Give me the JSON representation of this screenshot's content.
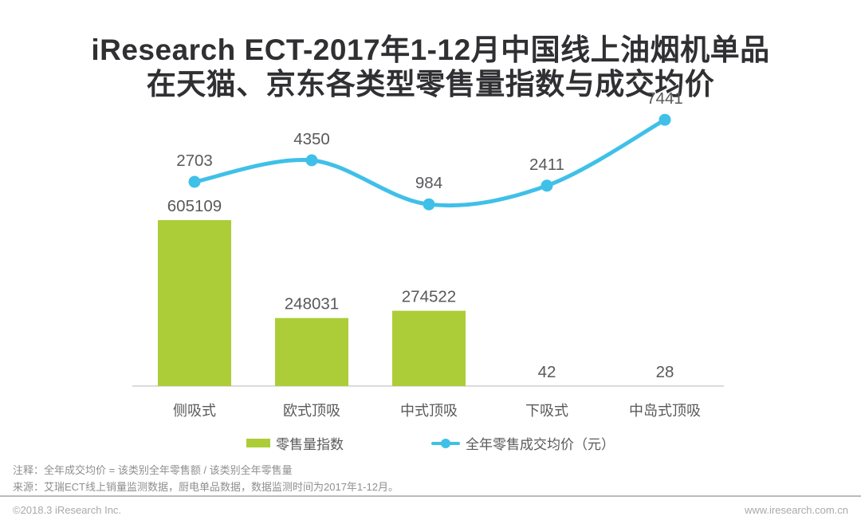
{
  "title": {
    "line1": "iResearch ECT-2017年1-12月中国线上油烟机单品",
    "line2": "在天猫、京东各类型零售量指数与成交均价"
  },
  "chart_data": {
    "type": "bar",
    "combo": "bar+line",
    "categories": [
      "侧吸式",
      "欧式顶吸",
      "中式顶吸",
      "下吸式",
      "中岛式顶吸"
    ],
    "series": [
      {
        "name": "零售量指数",
        "type": "bar",
        "color": "#accd38",
        "values": [
          605109,
          248031,
          274522,
          42,
          28
        ]
      },
      {
        "name": "全年零售成交均价（元）",
        "type": "line",
        "color": "#3fc0e8",
        "values": [
          2703,
          4350,
          984,
          2411,
          7441
        ]
      }
    ],
    "title": "iResearch ECT-2017年1-12月中国线上油烟机单品在天猫、京东各类型零售量指数与成交均价",
    "xlabel": "",
    "ylabel": "",
    "grid": false,
    "legend_position": "bottom",
    "value_labels_shown": true
  },
  "legend": {
    "bar_label": "零售量指数",
    "line_label": "全年零售成交均价（元）"
  },
  "notes": {
    "annotation": "注释：全年成交均价 = 该类别全年零售额 / 该类别全年零售量",
    "source": "来源：艾瑞ECT线上销量监测数据，厨电单品数据，数据监测时间为2017年1-12月。"
  },
  "footer": {
    "copyright": "©2018.3 iResearch Inc.",
    "website": "www.iresearch.com.cn"
  },
  "colors": {
    "bar_green": "#accd38",
    "line_blue": "#3fc0e8",
    "label_gray": "#58595b",
    "axis_gray": "#cfcfcf"
  }
}
